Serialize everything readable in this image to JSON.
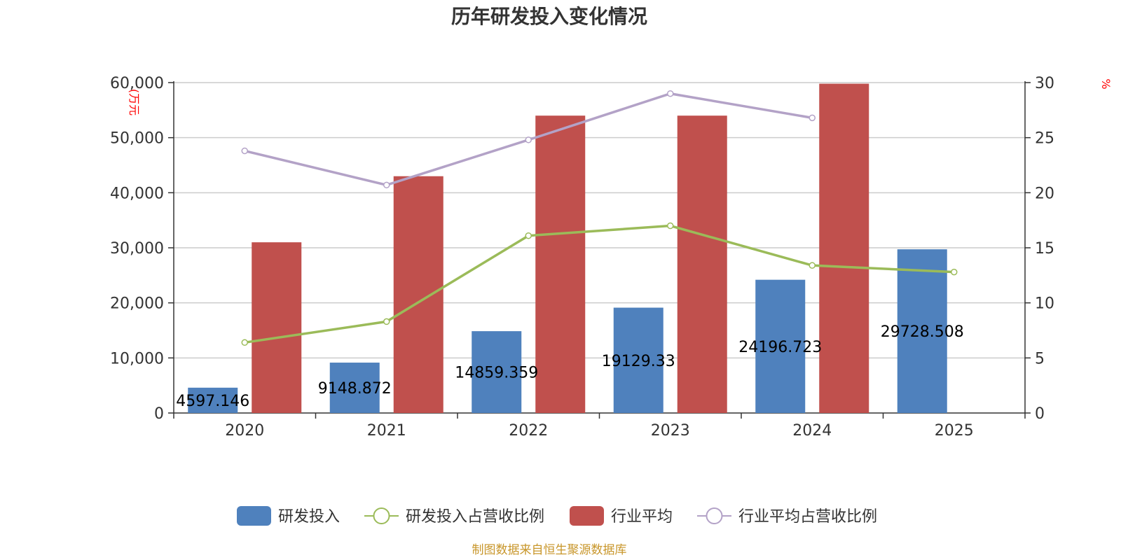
{
  "chart_data": {
    "type": "bar",
    "title": "历年研发投入变化情况",
    "categories": [
      "2020",
      "2021",
      "2022",
      "2023",
      "2024",
      "2025"
    ],
    "y_left": {
      "unit_label": "(万元",
      "ticks": [
        "0",
        "10,000",
        "20,000",
        "30,000",
        "40,000",
        "50,000",
        "60,000"
      ],
      "range": [
        0,
        60000
      ]
    },
    "y_right": {
      "unit_label": "%",
      "ticks": [
        "0",
        "5",
        "10",
        "15",
        "20",
        "25",
        "30"
      ],
      "range": [
        0,
        30
      ]
    },
    "series": [
      {
        "name": "研发投入",
        "type": "bar",
        "axis": "left",
        "color": "#4f81bd",
        "values": [
          4597.146,
          9148.872,
          14859.359,
          19129.33,
          24196.723,
          29728.508
        ],
        "labels": [
          "4597.146",
          "9148.872",
          "14859.359",
          "19129.33",
          "24196.723",
          "29728.508"
        ]
      },
      {
        "name": "研发投入占营收比例",
        "type": "line",
        "axis": "right",
        "color": "#9bbb59",
        "values": [
          6.4,
          8.3,
          16.1,
          17.0,
          13.4,
          12.8
        ]
      },
      {
        "name": "行业平均",
        "type": "bar",
        "axis": "left",
        "color": "#c0504d",
        "values": [
          31000,
          43000,
          54000,
          54000,
          59800,
          null
        ]
      },
      {
        "name": "行业平均占营收比例",
        "type": "line",
        "axis": "right",
        "color": "#b3a2c7",
        "values": [
          23.8,
          20.7,
          24.8,
          29.0,
          26.8,
          null
        ]
      }
    ],
    "legend_position": "bottom-center",
    "grid": true
  },
  "source_note": "制图数据来自恒生聚源数据库"
}
